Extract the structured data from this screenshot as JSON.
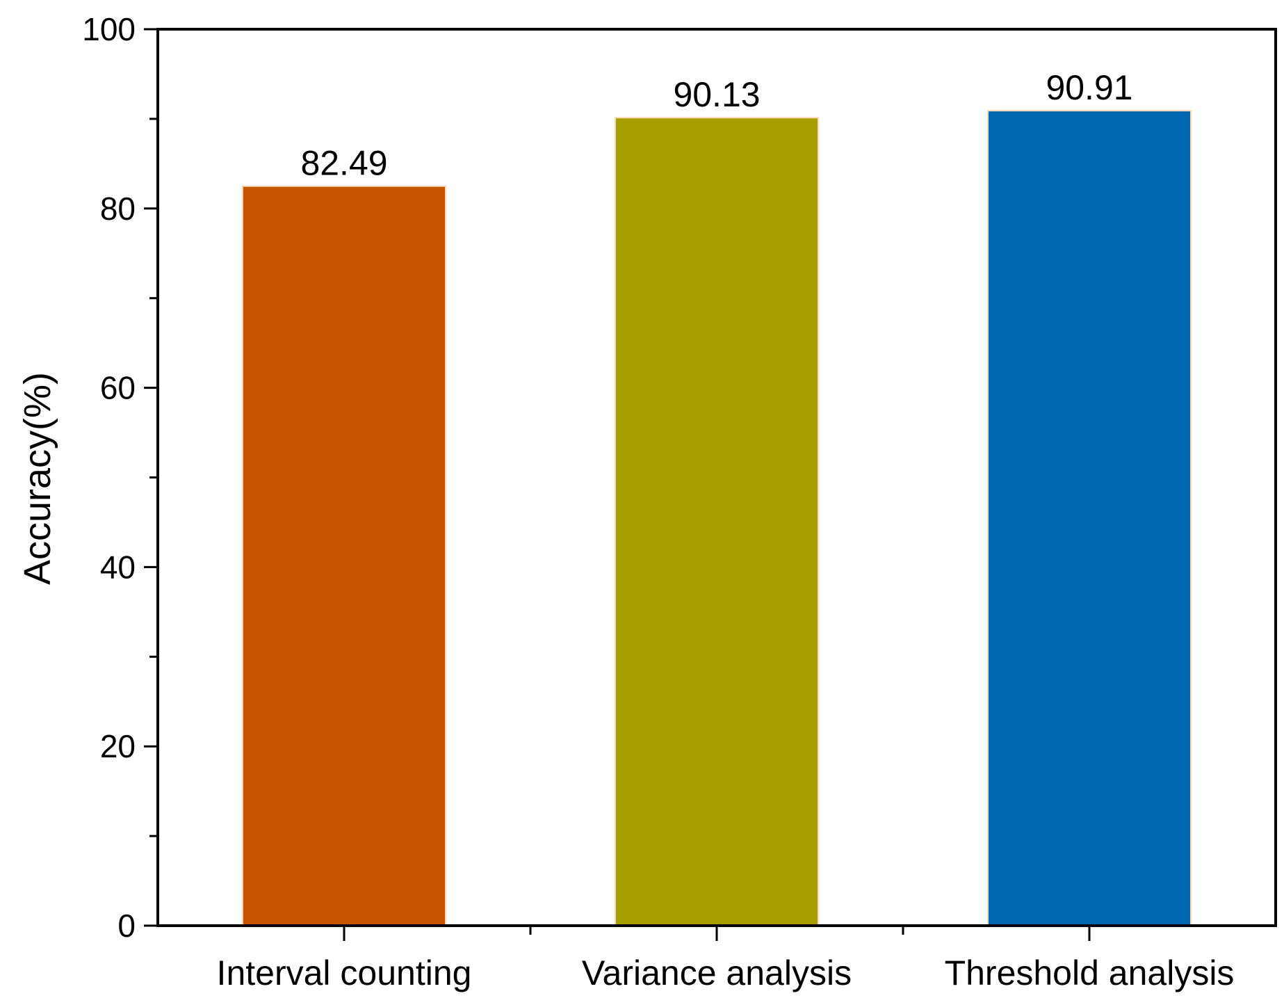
{
  "chart_data": {
    "type": "bar",
    "title": "",
    "xlabel": "",
    "ylabel": "Accuracy(%)",
    "categories": [
      "Interval counting",
      "Variance analysis",
      "Threshold analysis"
    ],
    "values": [
      82.49,
      90.13,
      90.91
    ],
    "value_labels": [
      "82.49",
      "90.13",
      "90.91"
    ],
    "colors": [
      "#C85300",
      "#A89E00",
      "#0067B0"
    ],
    "ylim": [
      0,
      100
    ],
    "yticks": [
      0,
      20,
      40,
      60,
      80,
      100
    ],
    "ytick_labels": [
      "0",
      "20",
      "40",
      "60",
      "80",
      "100"
    ],
    "grid": false,
    "legend": "none"
  }
}
